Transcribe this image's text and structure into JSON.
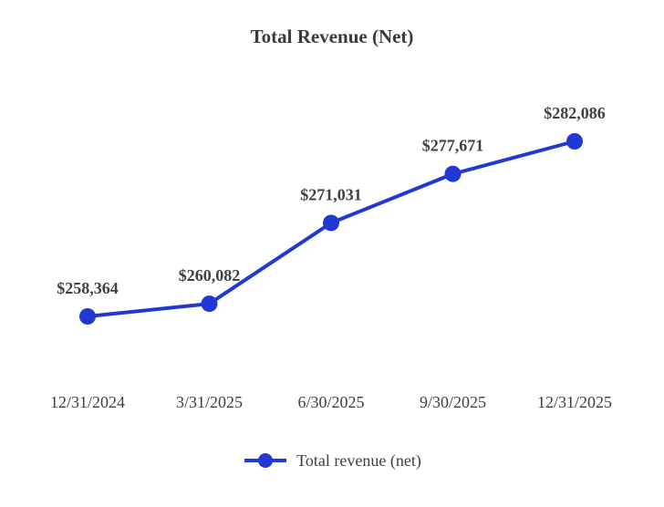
{
  "title": "Total Revenue (Net)",
  "legend": {
    "label": "Total revenue (net)"
  },
  "colors": {
    "line": "#2038d4",
    "label_text": "#404040",
    "title_text": "#3b3b3b"
  },
  "chart_data": {
    "type": "line",
    "title": "Total Revenue (Net)",
    "categories": [
      "12/31/2024",
      "3/31/2025",
      "6/30/2025",
      "9/30/2025",
      "12/31/2025"
    ],
    "series": [
      {
        "name": "Total revenue (net)",
        "values": [
          258364,
          260082,
          271031,
          277671,
          282086
        ]
      }
    ],
    "value_labels": [
      "$258,364",
      "$260,082",
      "$271,031",
      "$277,671",
      "$282,086"
    ],
    "xlabel": "",
    "ylabel": "",
    "ylim": [
      255000,
      285000
    ],
    "grid": false,
    "axes_visible": false,
    "marker": "circle",
    "data_labels": true,
    "legend_position": "bottom"
  }
}
